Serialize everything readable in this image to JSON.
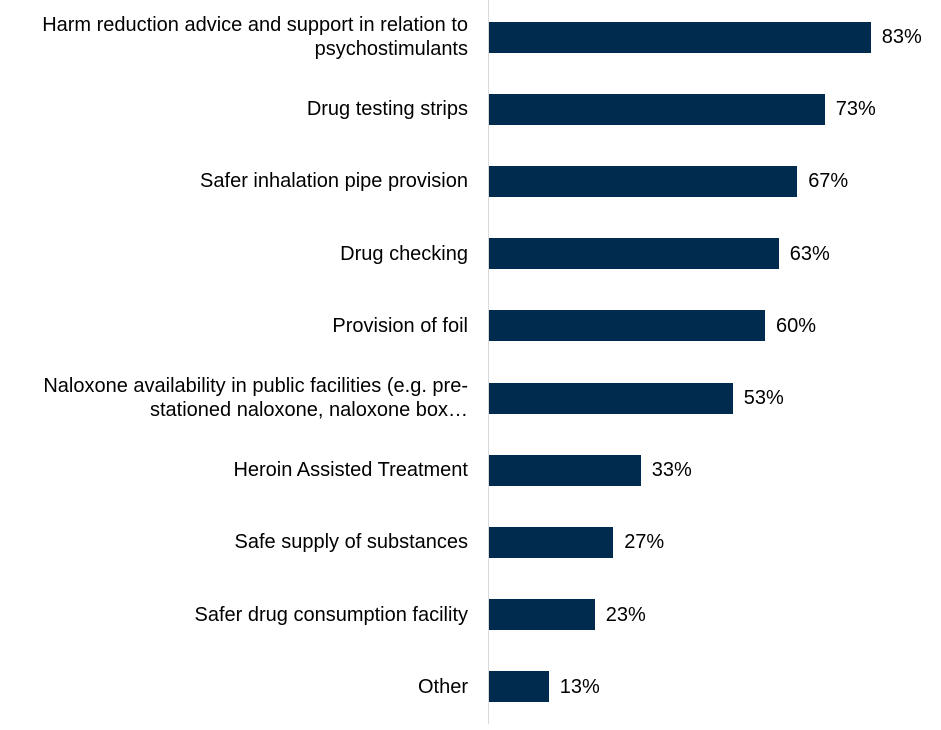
{
  "chart_data": {
    "type": "bar",
    "orientation": "horizontal",
    "categories": [
      "Harm reduction advice and support in relation to psychostimulants",
      "Drug testing strips",
      "Safer inhalation pipe provision",
      "Drug checking",
      "Provision of foil",
      "Naloxone availability in public facilities (e.g. pre-stationed naloxone, naloxone box…",
      "Heroin Assisted Treatment",
      "Safe supply of substances",
      "Safer drug consumption facility",
      "Other"
    ],
    "values": [
      83,
      73,
      67,
      63,
      60,
      53,
      33,
      27,
      23,
      13
    ],
    "value_labels": [
      "83%",
      "73%",
      "67%",
      "63%",
      "60%",
      "53%",
      "33%",
      "27%",
      "23%",
      "13%"
    ],
    "color": "#002a4e"
  }
}
